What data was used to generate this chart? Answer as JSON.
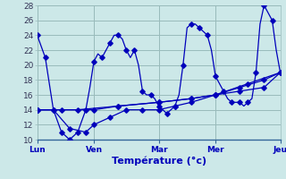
{
  "xlabel": "Température (°c)",
  "bg_color": "#cce8e8",
  "grid_color": "#99bbbb",
  "line_color": "#0000bb",
  "spine_color": "#336699",
  "ylim": [
    10,
    28
  ],
  "xlim": [
    0,
    30
  ],
  "yticks": [
    10,
    12,
    14,
    16,
    18,
    20,
    22,
    24,
    26,
    28
  ],
  "day_positions": [
    0,
    7,
    15,
    22,
    30
  ],
  "day_labels": [
    "Lun",
    "Ven",
    "Mar",
    "Mer",
    "Jeu"
  ],
  "lines": [
    {
      "x": [
        0,
        0.5,
        1,
        1.5,
        2,
        2.5,
        3,
        3.5,
        4,
        4.5,
        5,
        5.5,
        6,
        6.5,
        7,
        7.5,
        8,
        8.5,
        9,
        9.5,
        10,
        10.5,
        11,
        11.5,
        12,
        12.5,
        13,
        13.5,
        14,
        14.5,
        15,
        15.5,
        16,
        16.5,
        17,
        17.5,
        18,
        18.5,
        19,
        19.5,
        20,
        20.5,
        21,
        21.5,
        22,
        22.5,
        23,
        23.5,
        24,
        24.5,
        25,
        25.5,
        26,
        26.5,
        27,
        27.5,
        28,
        28.5,
        29,
        29.5,
        30
      ],
      "y": [
        24,
        22.5,
        21,
        17.5,
        14,
        12.5,
        11,
        10.5,
        10,
        10.5,
        11,
        12.5,
        14,
        17,
        20.5,
        21.5,
        21,
        22,
        23,
        24,
        24,
        23.5,
        22,
        21,
        22,
        20,
        16.5,
        16,
        16,
        15.5,
        14.5,
        14,
        13.5,
        14,
        14.5,
        16,
        20,
        25,
        25.5,
        25.5,
        25,
        24.5,
        24,
        22,
        18.5,
        17.5,
        16.5,
        15.5,
        15,
        15,
        15,
        14.5,
        15,
        15.5,
        19,
        25.5,
        28,
        27,
        26,
        22,
        19
      ]
    },
    {
      "x": [
        0,
        3,
        7,
        10,
        15,
        19,
        22,
        25,
        28,
        30
      ],
      "y": [
        14,
        14,
        14,
        14.5,
        15,
        15.5,
        16,
        17,
        18,
        19
      ]
    },
    {
      "x": [
        0,
        2,
        4,
        6,
        7,
        9,
        11,
        13,
        15,
        17,
        19,
        22,
        25,
        28,
        30
      ],
      "y": [
        14,
        14,
        11.5,
        11,
        12,
        13,
        14,
        14,
        14,
        14.5,
        15,
        16,
        16.5,
        17,
        19
      ]
    },
    {
      "x": [
        0,
        5,
        10,
        15,
        19,
        22,
        26,
        30
      ],
      "y": [
        14,
        14,
        14.5,
        15,
        15.5,
        16,
        17.5,
        19
      ]
    }
  ]
}
